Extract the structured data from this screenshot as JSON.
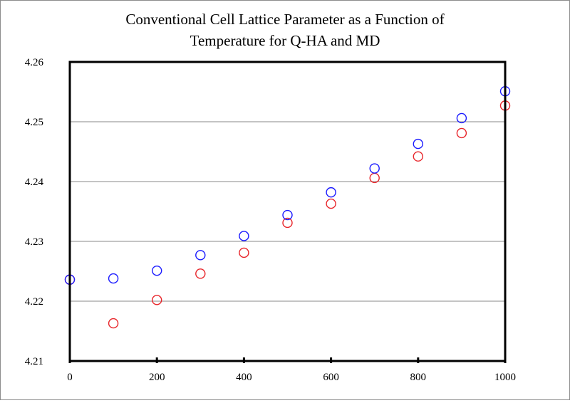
{
  "chart_data": {
    "type": "scatter",
    "title_lines": [
      "Conventional Cell Lattice Parameter as a Function of",
      "Temperature for Q-HA and MD"
    ],
    "xlabel": "",
    "ylabel": "",
    "xlim": [
      0,
      1000
    ],
    "ylim": [
      4.21,
      4.26
    ],
    "x_ticks": [
      "0",
      "200",
      "400",
      "600",
      "800",
      "1000"
    ],
    "y_ticks": [
      "4.21",
      "4.22",
      "4.23",
      "4.24",
      "4.25",
      "4.26"
    ],
    "grid": "horizontal",
    "legend": "none",
    "series": [
      {
        "name": "blue series",
        "color": "#1a1aff",
        "x": [
          0,
          100,
          200,
          300,
          400,
          500,
          600,
          700,
          800,
          900,
          1000
        ],
        "y": [
          4.2236,
          4.2238,
          4.2251,
          4.2277,
          4.2309,
          4.2344,
          4.2382,
          4.2422,
          4.2463,
          4.2506,
          4.2551
        ]
      },
      {
        "name": "red series",
        "color": "#e8252a",
        "x": [
          0,
          100,
          200,
          300,
          400,
          500,
          600,
          700,
          800,
          900,
          1000
        ],
        "y": [
          4.2236,
          4.2163,
          4.2202,
          4.2246,
          4.2281,
          4.2331,
          4.2363,
          4.2406,
          4.2442,
          4.2481,
          4.2527
        ]
      }
    ]
  }
}
